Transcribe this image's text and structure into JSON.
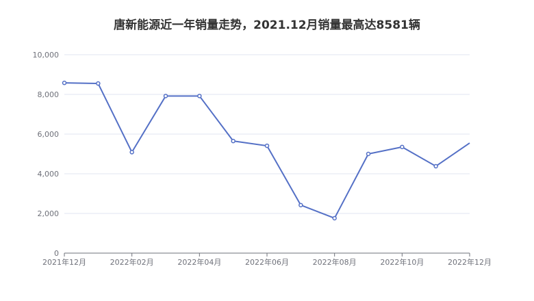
{
  "chart_data": {
    "type": "line",
    "title": "唐新能源近一年销量走势，2021.12月销量最高达8581辆",
    "xlabel": "",
    "ylabel": "",
    "x": [
      "2021年12月",
      "2022年01月",
      "2022年02月",
      "2022年03月",
      "2022年04月",
      "2022年05月",
      "2022年06月",
      "2022年07月",
      "2022年08月",
      "2022年09月",
      "2022年10月",
      "2022年11月",
      "2022年12月"
    ],
    "x_tick_labels": [
      "2021年12月",
      "2022年02月",
      "2022年04月",
      "2022年06月",
      "2022年08月",
      "2022年10月",
      "2022年12月"
    ],
    "series": [
      {
        "values": [
          8581,
          8550,
          5090,
          7920,
          7920,
          5650,
          5410,
          2420,
          1760,
          5000,
          5350,
          4380,
          5550
        ]
      }
    ],
    "ylim": [
      0,
      10000
    ],
    "y_ticks": [
      0,
      2000,
      4000,
      6000,
      8000,
      10000
    ],
    "y_tick_labels": [
      "0",
      "2,000",
      "4,000",
      "6,000",
      "8,000",
      "10,000"
    ],
    "grid": true,
    "colors": {
      "line": "#5470c6",
      "grid": "#e0e6f1",
      "axis": "#6e7079"
    }
  }
}
